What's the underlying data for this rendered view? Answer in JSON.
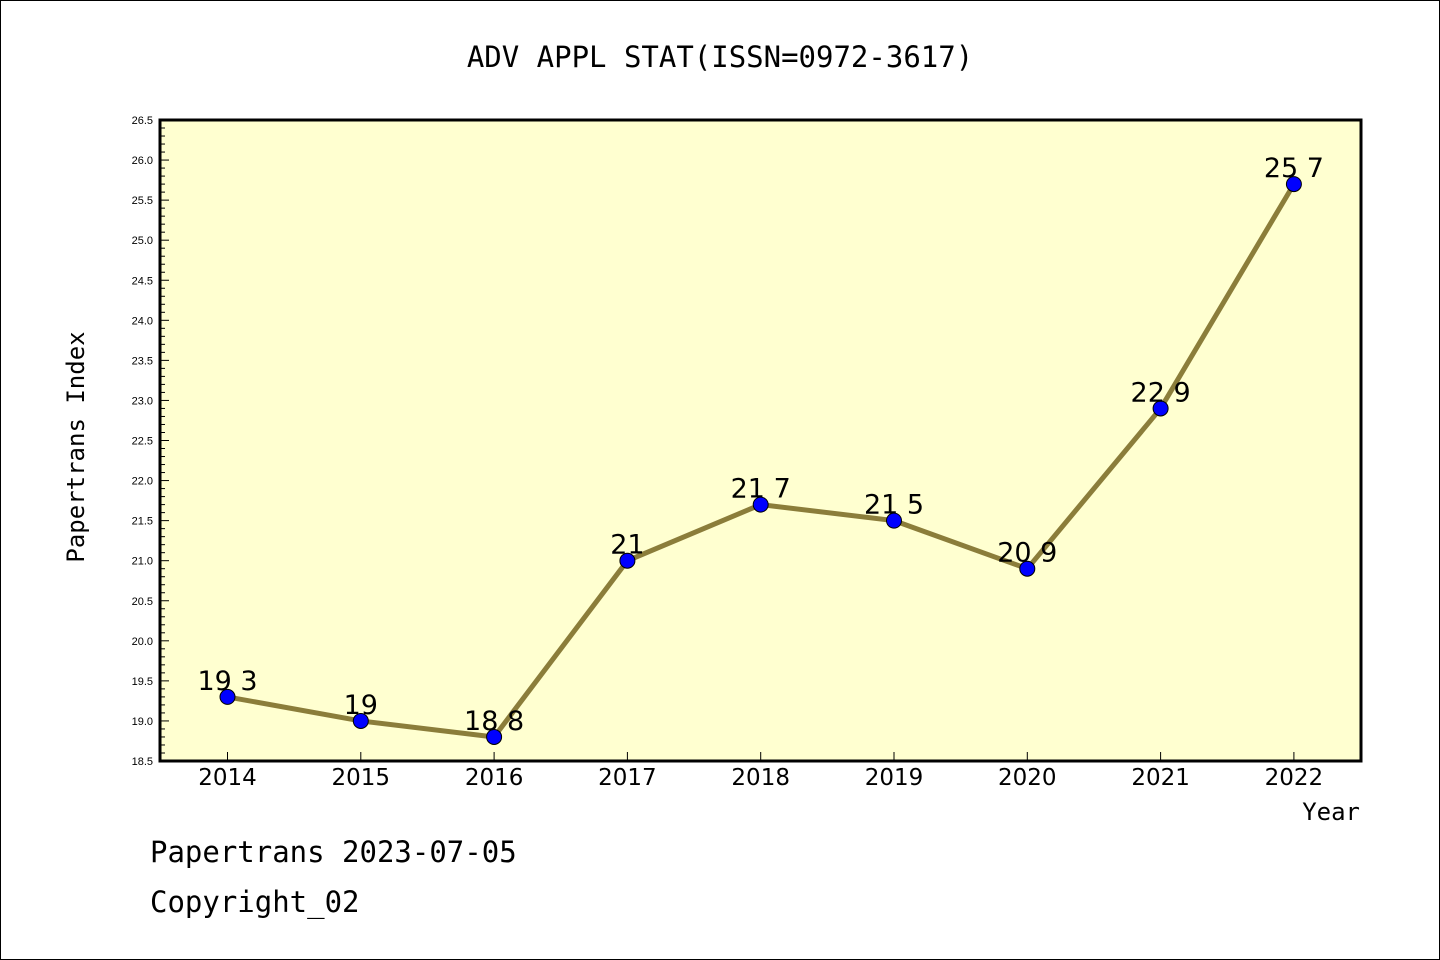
{
  "chart_data": {
    "type": "line",
    "title": "ADV APPL STAT(ISSN=0972-3617)",
    "xlabel": "Year",
    "ylabel": "Papertrans Index",
    "categories": [
      "2014",
      "2015",
      "2016",
      "2017",
      "2018",
      "2019",
      "2020",
      "2021",
      "2022"
    ],
    "series": [
      {
        "values": [
          19.3,
          19.0,
          18.8,
          21.0,
          21.7,
          21.5,
          20.9,
          22.9,
          25.7
        ],
        "labels": [
          "19.3",
          "19",
          "18.8",
          "21",
          "21.7",
          "21.5",
          "20.9",
          "22.9",
          "25.7"
        ]
      }
    ],
    "ylim": [
      18.5,
      26.5
    ],
    "yticks": [
      "18.5",
      "19.0",
      "19.5",
      "20.0",
      "20.5",
      "21.0",
      "21.5",
      "22.0",
      "22.5",
      "23.0",
      "23.5",
      "24.0",
      "24.5",
      "25.0",
      "25.5",
      "26.0",
      "26.5"
    ],
    "grid": false,
    "colors": {
      "plot_background": "#ffffd0",
      "line": "#8b7d3a",
      "marker": "#0000ff"
    }
  },
  "footer": {
    "line1": "Papertrans 2023-07-05",
    "line2": "Copyright_02"
  }
}
